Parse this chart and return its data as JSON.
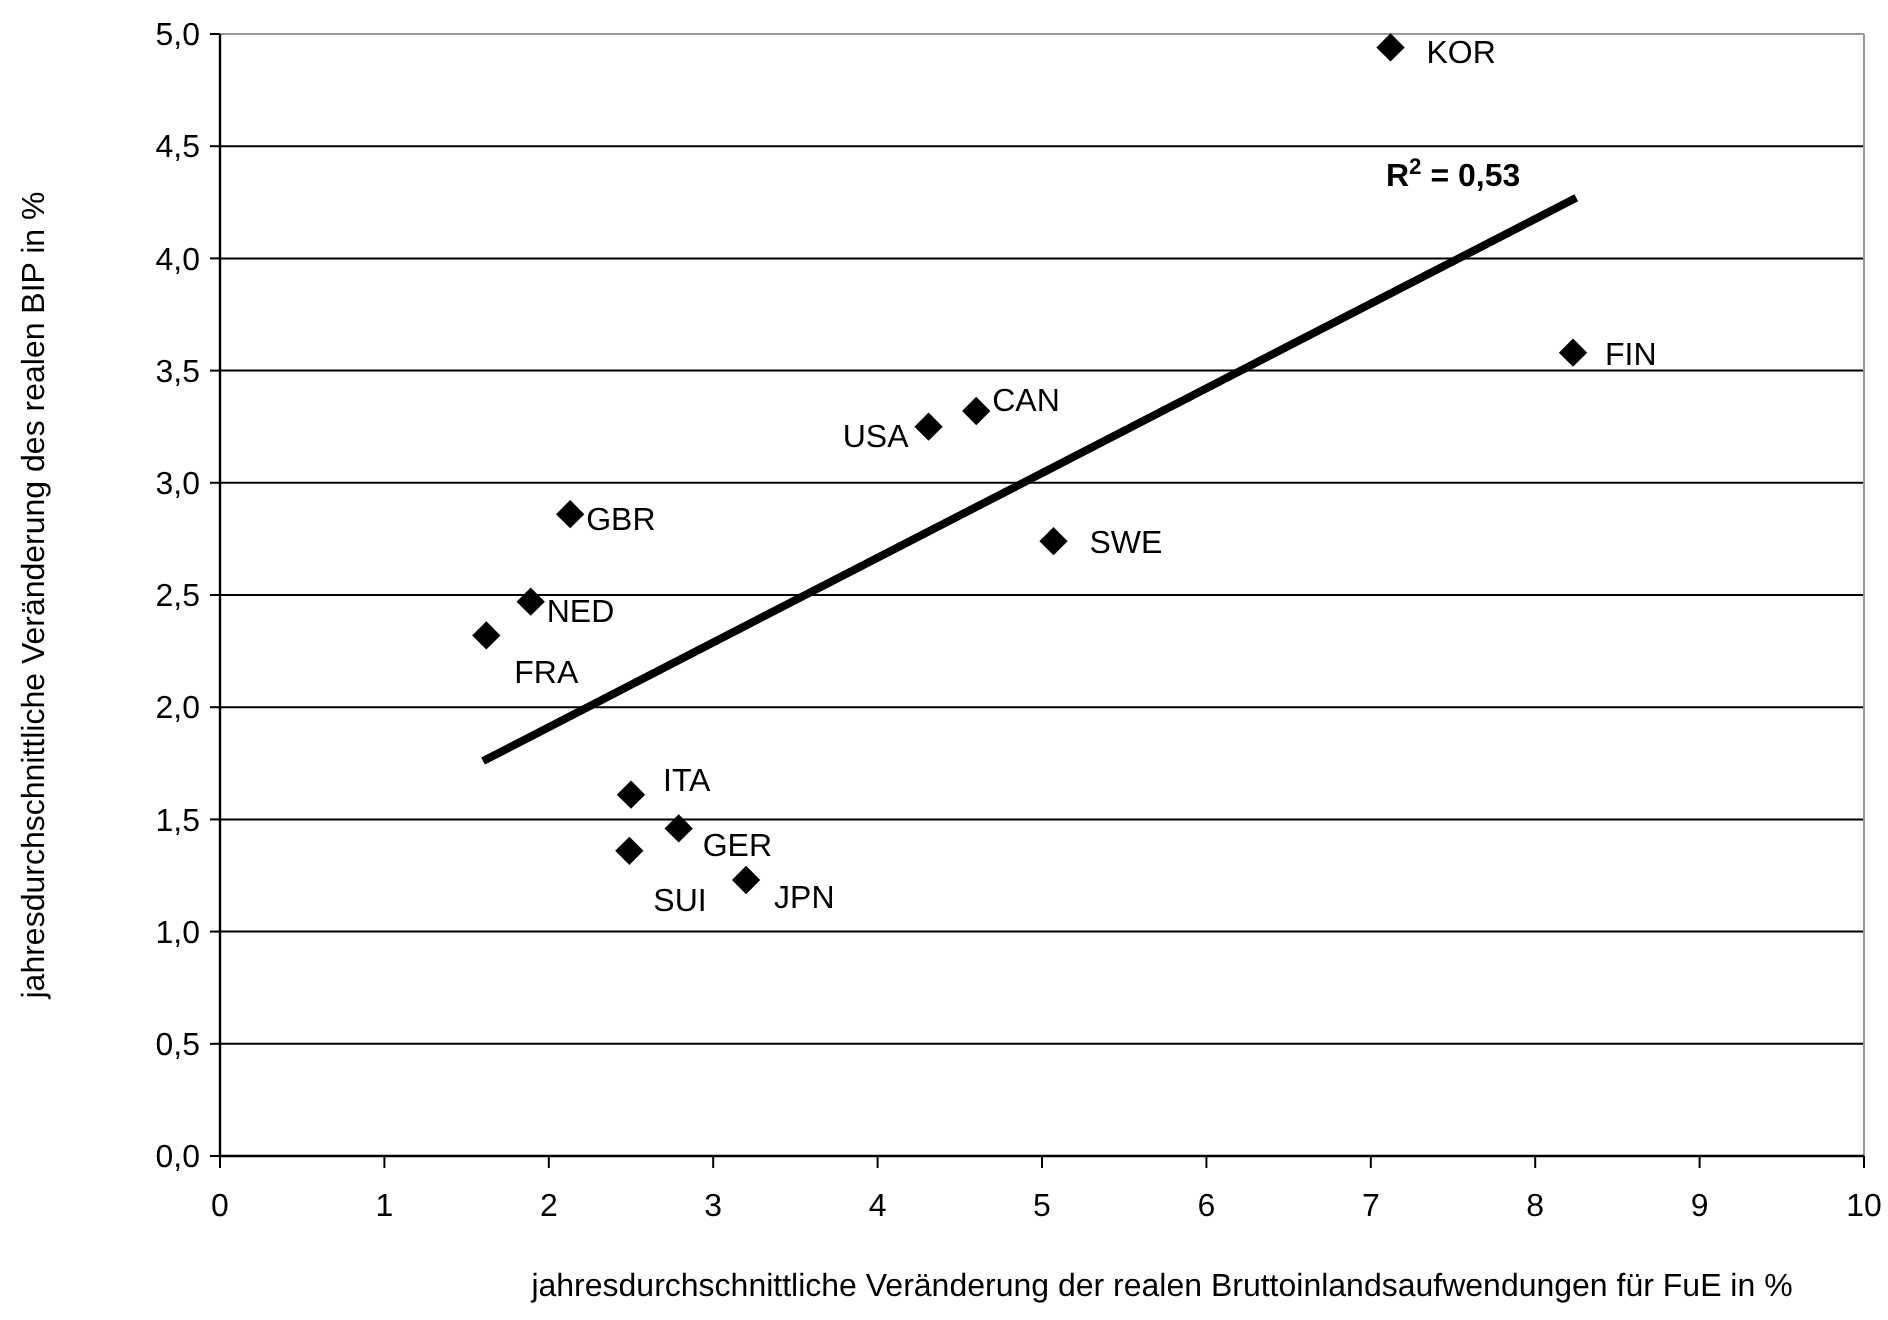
{
  "chart_data": {
    "type": "scatter",
    "xlabel": "jahresdurchschnittliche Veränderung der realen Bruttoinlandsaufwendungen für FuE in %",
    "ylabel": "jahresdurchschnittliche Veränderung des realen BIP in %",
    "xlim": [
      0,
      10
    ],
    "xticks": [
      0,
      1,
      2,
      3,
      4,
      5,
      6,
      7,
      8,
      9,
      10
    ],
    "ylim": [
      0,
      5
    ],
    "yticks": [
      {
        "value": 0,
        "label": "0,0"
      },
      {
        "value": 0.5,
        "label": "0,5"
      },
      {
        "value": 1,
        "label": "1,0"
      },
      {
        "value": 1.5,
        "label": "1,5"
      },
      {
        "value": 2,
        "label": "2,0"
      },
      {
        "value": 2.5,
        "label": "2,5"
      },
      {
        "value": 3,
        "label": "3,0"
      },
      {
        "value": 3.5,
        "label": "3,5"
      },
      {
        "value": 4,
        "label": "4,0"
      },
      {
        "value": 4.5,
        "label": "4,5"
      },
      {
        "value": 5,
        "label": "5,0"
      }
    ],
    "grid": "y",
    "series": [
      {
        "marker": "diamond",
        "color": "#000000",
        "x": [
          7.12,
          8.23,
          5.07,
          4.6,
          4.31,
          2.13,
          1.89,
          1.62,
          2.5,
          2.79,
          2.49,
          3.2
        ],
        "values": [
          4.94,
          3.58,
          2.74,
          3.32,
          3.25,
          2.86,
          2.47,
          2.32,
          1.61,
          1.46,
          1.36,
          1.23
        ]
      },
      {
        "type": "line",
        "marker": "none",
        "color": "#000000",
        "x": [
          1.6,
          8.25
        ],
        "values": [
          1.76,
          4.27
        ]
      }
    ],
    "annotations": [
      {
        "text": "KOR",
        "x": 7.12,
        "y": 4.94
      },
      {
        "text": "FIN",
        "x": 8.23,
        "y": 3.58
      },
      {
        "text": "SWE",
        "x": 5.07,
        "y": 2.74
      },
      {
        "text": "CAN",
        "x": 4.6,
        "y": 3.32
      },
      {
        "text": "USA",
        "x": 4.31,
        "y": 3.25
      },
      {
        "text": "GBR",
        "x": 2.13,
        "y": 2.86
      },
      {
        "text": "NED",
        "x": 1.89,
        "y": 2.47
      },
      {
        "text": "FRA",
        "x": 1.62,
        "y": 2.32
      },
      {
        "text": "ITA",
        "x": 2.5,
        "y": 1.61
      },
      {
        "text": "GER",
        "x": 2.79,
        "y": 1.46
      },
      {
        "text": "SUI",
        "x": 2.49,
        "y": 1.36
      },
      {
        "text": "JPN",
        "x": 3.2,
        "y": 1.23
      },
      "R$^{2}$ = 0,53"
    ]
  }
}
